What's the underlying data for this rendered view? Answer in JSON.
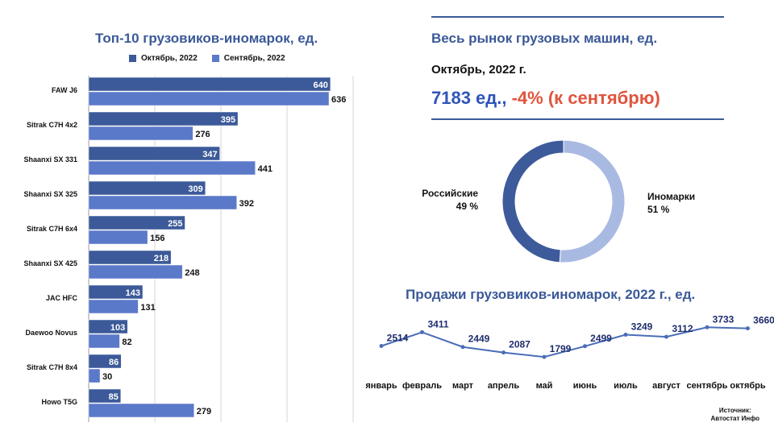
{
  "header": {
    "left_title": "Топ-10 грузовиков-иномарок, ед.",
    "right_title": "Весь рынок грузовых машин, ед.",
    "right_subtitle": "Октябрь, 2022 г.",
    "summary_total": "7183 ед.,",
    "summary_change": "-4% (к сентябрю)",
    "line_title": "Продажи грузовиков-иномарок, 2022 г., ед.",
    "source_line1": "Источник:",
    "source_line2": "Автостат Инфо"
  },
  "colors": {
    "series_october": "#3c5a99",
    "series_september": "#5b79c9",
    "russian_slice": "#3d5a9a",
    "foreign_slice": "#a9bae2",
    "line": "#4a6db8",
    "title": "#3b5998",
    "change": "#e0543c"
  },
  "chart_data": [
    {
      "type": "bar",
      "orientation": "horizontal",
      "title": "Топ-10 грузовиков-иномарок, ед.",
      "categories": [
        "FAW J6",
        "Sitrak C7H 4x2",
        "Shaanxi SX 331",
        "Shaanxi SX 325",
        "Sitrak C7H 6x4",
        "Shaanxi SX 425",
        "JAC HFC",
        "Daewoo Novus",
        "Sitrak C7H 8x4",
        "Howo T5G"
      ],
      "series": [
        {
          "name": "Октябрь, 2022",
          "values": [
            640,
            395,
            347,
            309,
            255,
            218,
            143,
            103,
            86,
            85
          ]
        },
        {
          "name": "Сентябрь, 2022",
          "values": [
            636,
            276,
            441,
            392,
            156,
            248,
            131,
            82,
            30,
            279
          ]
        }
      ],
      "xlim": [
        0,
        700
      ],
      "grid": true,
      "legend": "top"
    },
    {
      "type": "pie",
      "donut": true,
      "slices": [
        {
          "label": "Российские",
          "percent_label": "49 %",
          "value": 49
        },
        {
          "label": "Иномарки",
          "percent_label": "51 %",
          "value": 51
        }
      ]
    },
    {
      "type": "line",
      "title": "Продажи грузовиков-иномарок, 2022 г., ед.",
      "categories": [
        "январь",
        "февраль",
        "март",
        "апрель",
        "май",
        "июнь",
        "июль",
        "август",
        "сентябрь",
        "октябрь"
      ],
      "values": [
        2514,
        3411,
        2449,
        2087,
        1799,
        2499,
        3249,
        3112,
        3733,
        3660
      ]
    }
  ]
}
